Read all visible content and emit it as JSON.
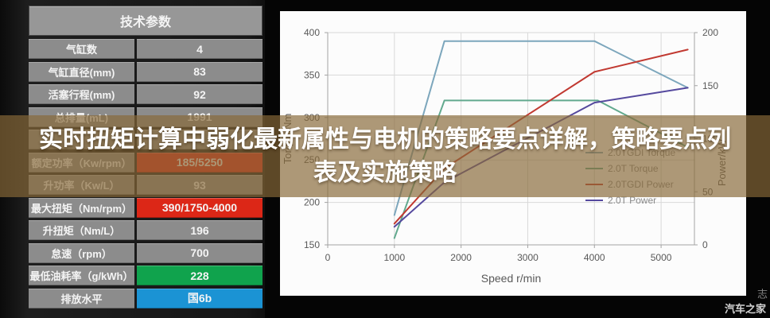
{
  "table": {
    "title": "技术参数",
    "rows": [
      {
        "label": "气缸数",
        "value": "4",
        "value_bg": "gray"
      },
      {
        "label": "气缸直径(mm)",
        "value": "83",
        "value_bg": "gray"
      },
      {
        "label": "活塞行程(mm)",
        "value": "92",
        "value_bg": "gray"
      },
      {
        "label": "总排量(mL)",
        "value": "1991",
        "value_bg": "gray"
      },
      {
        "label": "",
        "value": "",
        "value_bg": "gray"
      },
      {
        "label": "额定功率（Kw/rpm）",
        "value": "185/5250",
        "value_bg": "red"
      },
      {
        "label": "升功率（Kw/L）",
        "value": "93",
        "value_bg": "gray"
      },
      {
        "label": "最大扭矩（Nm/rpm）",
        "value": "390/1750-4000",
        "value_bg": "red"
      },
      {
        "label": "升扭矩（Nm/L）",
        "value": "196",
        "value_bg": "gray"
      },
      {
        "label": "怠速（rpm）",
        "value": "700",
        "value_bg": "gray"
      },
      {
        "label": "最低油耗率（g/kWh）",
        "value": "228",
        "value_bg": "green"
      },
      {
        "label": "排放水平",
        "value": "国6b",
        "value_bg": "blue"
      }
    ]
  },
  "overlay": {
    "line1": "实时扭矩计算中弱化最新属性与电机的策略要点详解，策略要点列",
    "line2": "表及实施策略"
  },
  "watermark": {
    "text": "汽车之家",
    "vertical_text": "志"
  },
  "colors": {
    "row_gray": "#8c8c8c",
    "row_red": "#dc2717",
    "row_green": "#10a34d",
    "row_blue": "#1b93d4",
    "overlay_brown": "rgba(136,104,56,0.68)",
    "grid": "#d9d9d9",
    "axis": "#a3a3a3",
    "chart_text": "#595959"
  },
  "chart_data": {
    "type": "line",
    "title": "",
    "x_axis": {
      "label": "Speed r/min",
      "ticks": [
        0,
        1000,
        2000,
        3000,
        4000,
        5000
      ],
      "range": [
        0,
        5500
      ]
    },
    "y_left": {
      "label": "Torque/Nm",
      "ticks": [
        150,
        200,
        250,
        300,
        350,
        400
      ],
      "range": [
        150,
        400
      ]
    },
    "y_right": {
      "label": "Power/kW",
      "ticks": [
        0,
        50,
        100,
        150,
        200
      ],
      "range": [
        0,
        200
      ]
    },
    "grid": true,
    "legend_position": "center-right",
    "series": [
      {
        "name": "2.0TGDI Torque",
        "axis": "left",
        "color": "#7ca6bc",
        "points": [
          [
            1000,
            185
          ],
          [
            1750,
            390
          ],
          [
            4000,
            390
          ],
          [
            5400,
            335
          ]
        ]
      },
      {
        "name": "2.0T Torque",
        "axis": "left",
        "color": "#62a98e",
        "points": [
          [
            1000,
            158
          ],
          [
            1750,
            320
          ],
          [
            4050,
            320
          ],
          [
            5400,
            265
          ]
        ]
      },
      {
        "name": "2.0TGDI Power",
        "axis": "right",
        "color": "#c13931",
        "points": [
          [
            1000,
            20
          ],
          [
            1750,
            72
          ],
          [
            4000,
            163
          ],
          [
            5400,
            184
          ]
        ]
      },
      {
        "name": "2.0T Power",
        "axis": "right",
        "color": "#55499e",
        "points": [
          [
            1000,
            17
          ],
          [
            1750,
            59
          ],
          [
            4000,
            134
          ],
          [
            5400,
            148
          ]
        ]
      }
    ]
  }
}
